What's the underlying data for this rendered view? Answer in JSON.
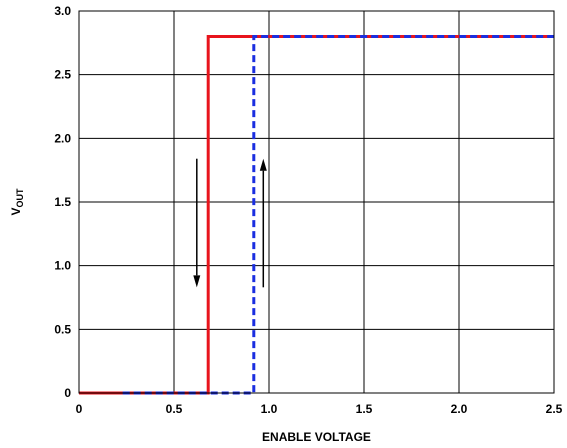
{
  "chart_data": {
    "type": "line",
    "title": "",
    "xlabel": "ENABLE VOLTAGE",
    "ylabel": {
      "main": "V",
      "sub": "OUT"
    },
    "xlim": [
      0,
      2.5
    ],
    "ylim": [
      0,
      3.0
    ],
    "xticks": [
      0,
      0.5,
      1.0,
      1.5,
      2.0,
      2.5
    ],
    "xtick_labels": [
      "0",
      "0.5",
      "1.0",
      "1.5",
      "2.0",
      "2.5"
    ],
    "yticks": [
      0,
      0.5,
      1.0,
      1.5,
      2.0,
      2.5,
      3.0
    ],
    "ytick_labels": [
      "0",
      "0.5",
      "1.0",
      "1.5",
      "2.0",
      "2.5",
      "3.0"
    ],
    "grid": true,
    "legend": "none",
    "series": [
      {
        "color": "#e8141c",
        "style": "solid",
        "x": [
          0,
          0.68,
          0.68,
          2.5
        ],
        "y": [
          0,
          0,
          2.8,
          2.8
        ]
      },
      {
        "color": "#1a2ee0",
        "style": "dashed",
        "x": [
          0.23,
          0.92,
          0.92,
          2.5
        ],
        "y": [
          0,
          0,
          2.8,
          2.8
        ]
      }
    ],
    "annotations": [
      {
        "type": "arrow",
        "direction": "down",
        "x": 0.62,
        "y_from": 1.84,
        "y_to": 0.83
      },
      {
        "type": "arrow",
        "direction": "up",
        "x": 0.97,
        "y_from": 0.83,
        "y_to": 1.84
      }
    ]
  }
}
